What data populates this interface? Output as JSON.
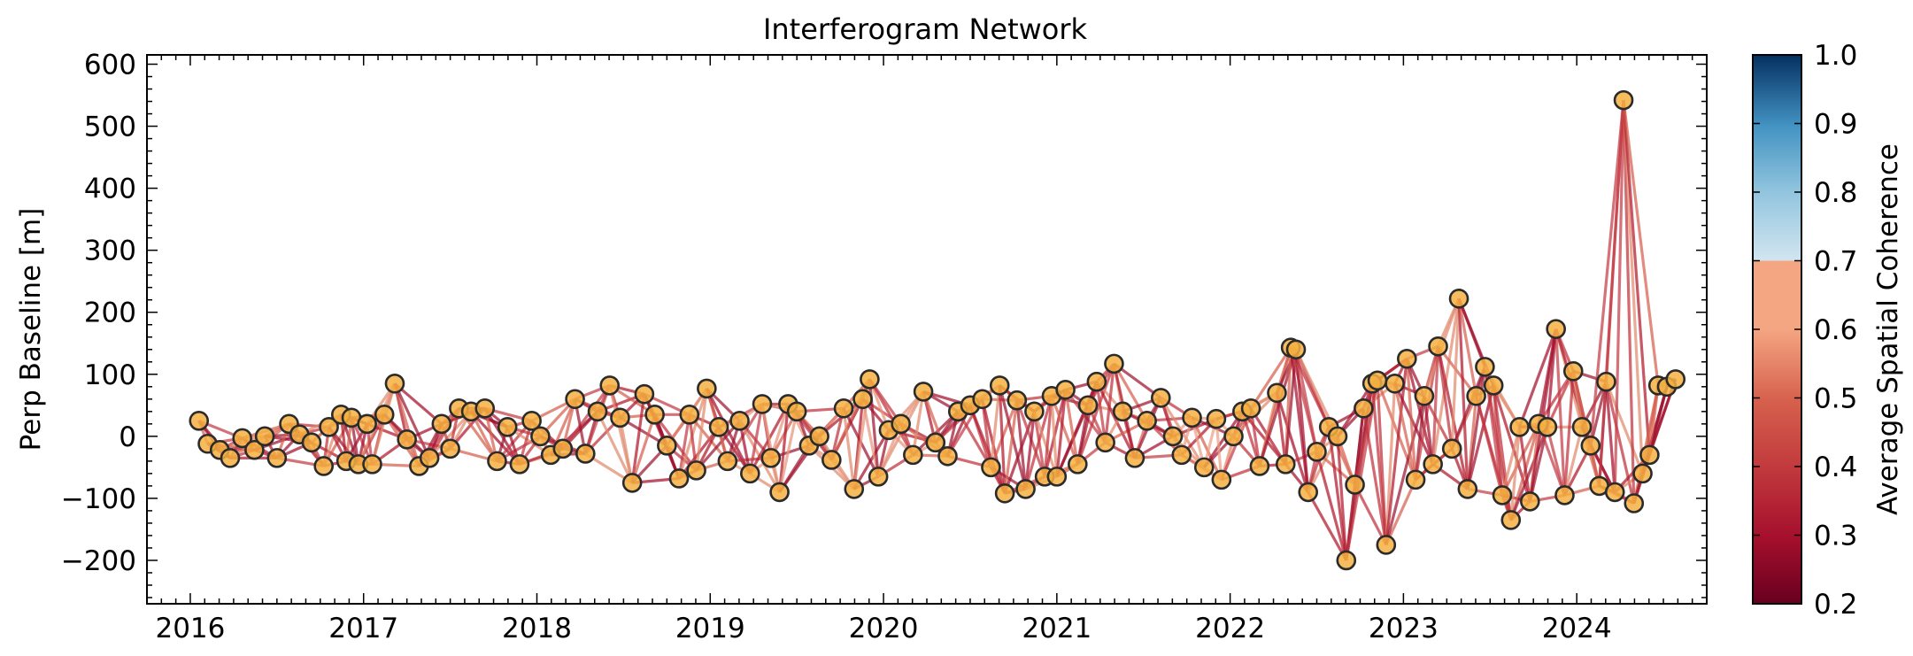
{
  "chart_data": {
    "type": "scatter",
    "title": "Interferogram Network",
    "xlabel": "",
    "ylabel": "Perp Baseline [m]",
    "colorbar_label": "Average Spatial Coherence",
    "xlim": [
      2015.75,
      2024.75
    ],
    "ylim": [
      -270,
      615
    ],
    "x_ticks": [
      2016,
      2017,
      2018,
      2019,
      2020,
      2021,
      2022,
      2023,
      2024
    ],
    "y_ticks": [
      -200,
      -100,
      0,
      100,
      200,
      300,
      400,
      500,
      600
    ],
    "colorbar_range": [
      0.2,
      1.0
    ],
    "colorbar_ticks": [
      0.2,
      0.3,
      0.4,
      0.5,
      0.6,
      0.7,
      0.8,
      0.9,
      1.0
    ],
    "colors": {
      "point_fill": "#f5b041",
      "point_edge": "#2b2b2b",
      "cmap_low": "#67001f",
      "cmap_mid": "#f4a582",
      "cmap_light": "#d1e5f0",
      "cmap_high": "#053061"
    },
    "grid": false,
    "points": [
      {
        "x": 2016.05,
        "y": 25
      },
      {
        "x": 2016.1,
        "y": -12
      },
      {
        "x": 2016.17,
        "y": -22
      },
      {
        "x": 2016.23,
        "y": -35
      },
      {
        "x": 2016.3,
        "y": -3
      },
      {
        "x": 2016.37,
        "y": -22
      },
      {
        "x": 2016.43,
        "y": 0
      },
      {
        "x": 2016.5,
        "y": -35
      },
      {
        "x": 2016.57,
        "y": 20
      },
      {
        "x": 2016.63,
        "y": 3
      },
      {
        "x": 2016.7,
        "y": -10
      },
      {
        "x": 2016.77,
        "y": -48
      },
      {
        "x": 2016.8,
        "y": 15
      },
      {
        "x": 2016.87,
        "y": 35
      },
      {
        "x": 2016.9,
        "y": -40
      },
      {
        "x": 2016.93,
        "y": 30
      },
      {
        "x": 2016.97,
        "y": -45
      },
      {
        "x": 2017.02,
        "y": 20
      },
      {
        "x": 2017.05,
        "y": -45
      },
      {
        "x": 2017.12,
        "y": 35
      },
      {
        "x": 2017.18,
        "y": 85
      },
      {
        "x": 2017.25,
        "y": -5
      },
      {
        "x": 2017.32,
        "y": -48
      },
      {
        "x": 2017.38,
        "y": -35
      },
      {
        "x": 2017.45,
        "y": 20
      },
      {
        "x": 2017.5,
        "y": -20
      },
      {
        "x": 2017.55,
        "y": 45
      },
      {
        "x": 2017.62,
        "y": 40
      },
      {
        "x": 2017.7,
        "y": 45
      },
      {
        "x": 2017.77,
        "y": -40
      },
      {
        "x": 2017.83,
        "y": 15
      },
      {
        "x": 2017.9,
        "y": -45
      },
      {
        "x": 2017.97,
        "y": 25
      },
      {
        "x": 2018.02,
        "y": 0
      },
      {
        "x": 2018.08,
        "y": -30
      },
      {
        "x": 2018.15,
        "y": -20
      },
      {
        "x": 2018.22,
        "y": 60
      },
      {
        "x": 2018.28,
        "y": -28
      },
      {
        "x": 2018.35,
        "y": 40
      },
      {
        "x": 2018.42,
        "y": 82
      },
      {
        "x": 2018.48,
        "y": 30
      },
      {
        "x": 2018.55,
        "y": -75
      },
      {
        "x": 2018.62,
        "y": 68
      },
      {
        "x": 2018.68,
        "y": 35
      },
      {
        "x": 2018.75,
        "y": -15
      },
      {
        "x": 2018.82,
        "y": -68
      },
      {
        "x": 2018.88,
        "y": 35
      },
      {
        "x": 2018.92,
        "y": -55
      },
      {
        "x": 2018.98,
        "y": 77
      },
      {
        "x": 2019.05,
        "y": 15
      },
      {
        "x": 2019.1,
        "y": -40
      },
      {
        "x": 2019.17,
        "y": 25
      },
      {
        "x": 2019.23,
        "y": -60
      },
      {
        "x": 2019.3,
        "y": 52
      },
      {
        "x": 2019.35,
        "y": -35
      },
      {
        "x": 2019.4,
        "y": -90
      },
      {
        "x": 2019.45,
        "y": 52
      },
      {
        "x": 2019.5,
        "y": 40
      },
      {
        "x": 2019.57,
        "y": -15
      },
      {
        "x": 2019.63,
        "y": 0
      },
      {
        "x": 2019.7,
        "y": -38
      },
      {
        "x": 2019.77,
        "y": 45
      },
      {
        "x": 2019.83,
        "y": -85
      },
      {
        "x": 2019.88,
        "y": 60
      },
      {
        "x": 2019.92,
        "y": 92
      },
      {
        "x": 2019.97,
        "y": -65
      },
      {
        "x": 2020.03,
        "y": 10
      },
      {
        "x": 2020.1,
        "y": 20
      },
      {
        "x": 2020.17,
        "y": -30
      },
      {
        "x": 2020.23,
        "y": 72
      },
      {
        "x": 2020.3,
        "y": -10
      },
      {
        "x": 2020.37,
        "y": -32
      },
      {
        "x": 2020.43,
        "y": 40
      },
      {
        "x": 2020.5,
        "y": 50
      },
      {
        "x": 2020.57,
        "y": 60
      },
      {
        "x": 2020.62,
        "y": -50
      },
      {
        "x": 2020.67,
        "y": 82
      },
      {
        "x": 2020.7,
        "y": -92
      },
      {
        "x": 2020.77,
        "y": 58
      },
      {
        "x": 2020.82,
        "y": -85
      },
      {
        "x": 2020.87,
        "y": 40
      },
      {
        "x": 2020.93,
        "y": -65
      },
      {
        "x": 2020.97,
        "y": 65
      },
      {
        "x": 2021.0,
        "y": -65
      },
      {
        "x": 2021.05,
        "y": 75
      },
      {
        "x": 2021.12,
        "y": -45
      },
      {
        "x": 2021.18,
        "y": 50
      },
      {
        "x": 2021.23,
        "y": 88
      },
      {
        "x": 2021.28,
        "y": -10
      },
      {
        "x": 2021.33,
        "y": 117
      },
      {
        "x": 2021.38,
        "y": 40
      },
      {
        "x": 2021.45,
        "y": -35
      },
      {
        "x": 2021.52,
        "y": 25
      },
      {
        "x": 2021.6,
        "y": 62
      },
      {
        "x": 2021.67,
        "y": 0
      },
      {
        "x": 2021.72,
        "y": -30
      },
      {
        "x": 2021.78,
        "y": 30
      },
      {
        "x": 2021.85,
        "y": -50
      },
      {
        "x": 2021.92,
        "y": 28
      },
      {
        "x": 2021.95,
        "y": -70
      },
      {
        "x": 2022.02,
        "y": 0
      },
      {
        "x": 2022.07,
        "y": 40
      },
      {
        "x": 2022.12,
        "y": 45
      },
      {
        "x": 2022.17,
        "y": -48
      },
      {
        "x": 2022.27,
        "y": 70
      },
      {
        "x": 2022.32,
        "y": -45
      },
      {
        "x": 2022.35,
        "y": 143
      },
      {
        "x": 2022.38,
        "y": 140
      },
      {
        "x": 2022.45,
        "y": -90
      },
      {
        "x": 2022.5,
        "y": -25
      },
      {
        "x": 2022.57,
        "y": 15
      },
      {
        "x": 2022.62,
        "y": 0
      },
      {
        "x": 2022.67,
        "y": -200
      },
      {
        "x": 2022.72,
        "y": -78
      },
      {
        "x": 2022.77,
        "y": 45
      },
      {
        "x": 2022.82,
        "y": 85
      },
      {
        "x": 2022.85,
        "y": 90
      },
      {
        "x": 2022.9,
        "y": -175
      },
      {
        "x": 2022.95,
        "y": 85
      },
      {
        "x": 2023.02,
        "y": 125
      },
      {
        "x": 2023.07,
        "y": -70
      },
      {
        "x": 2023.12,
        "y": 65
      },
      {
        "x": 2023.17,
        "y": -45
      },
      {
        "x": 2023.2,
        "y": 145
      },
      {
        "x": 2023.28,
        "y": -20
      },
      {
        "x": 2023.32,
        "y": 222
      },
      {
        "x": 2023.37,
        "y": -85
      },
      {
        "x": 2023.42,
        "y": 65
      },
      {
        "x": 2023.47,
        "y": 112
      },
      {
        "x": 2023.52,
        "y": 82
      },
      {
        "x": 2023.57,
        "y": -95
      },
      {
        "x": 2023.62,
        "y": -135
      },
      {
        "x": 2023.67,
        "y": 15
      },
      {
        "x": 2023.73,
        "y": -105
      },
      {
        "x": 2023.78,
        "y": 20
      },
      {
        "x": 2023.83,
        "y": 15
      },
      {
        "x": 2023.88,
        "y": 173
      },
      {
        "x": 2023.93,
        "y": -95
      },
      {
        "x": 2023.98,
        "y": 105
      },
      {
        "x": 2024.03,
        "y": 15
      },
      {
        "x": 2024.08,
        "y": -15
      },
      {
        "x": 2024.13,
        "y": -80
      },
      {
        "x": 2024.17,
        "y": 88
      },
      {
        "x": 2024.22,
        "y": -90
      },
      {
        "x": 2024.27,
        "y": 542
      },
      {
        "x": 2024.33,
        "y": -108
      },
      {
        "x": 2024.38,
        "y": -60
      },
      {
        "x": 2024.42,
        "y": -30
      },
      {
        "x": 2024.47,
        "y": 82
      },
      {
        "x": 2024.52,
        "y": 80
      },
      {
        "x": 2024.57,
        "y": 92
      }
    ]
  }
}
